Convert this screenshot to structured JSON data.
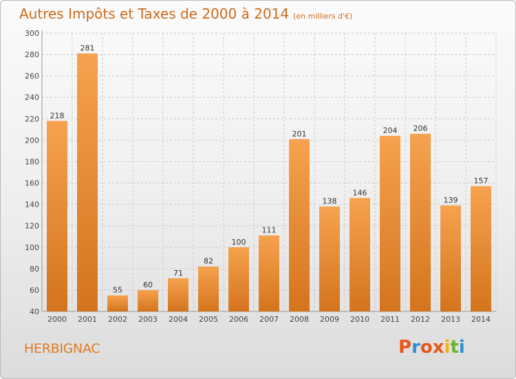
{
  "header": {
    "title": "Autres Impôts et Taxes de 2000 à 2014",
    "subtitle": "(en milliers d'€)"
  },
  "footer": {
    "commune": "HERBIGNAC",
    "logo_text": "Proxiti"
  },
  "colors": {
    "bar_top": "#f6a24e",
    "bar_bottom": "#d4741d",
    "title": "#d06a1a",
    "grid": "#c8c8c8",
    "logo": [
      "#e8571b",
      "#2f8fd6",
      "#e8571b",
      "#e8571b",
      "#f2b21a",
      "#68b52e",
      "#2f8fd6"
    ]
  },
  "chart_data": {
    "type": "bar",
    "title": "Autres Impôts et Taxes de 2000 à 2014",
    "subtitle": "(en milliers d'€)",
    "categories": [
      "2000",
      "2001",
      "2002",
      "2003",
      "2004",
      "2005",
      "2006",
      "2007",
      "2008",
      "2009",
      "2010",
      "2011",
      "2012",
      "2013",
      "2014"
    ],
    "values": [
      218,
      281,
      55,
      60,
      71,
      82,
      100,
      111,
      201,
      138,
      146,
      204,
      206,
      139,
      157
    ],
    "ylim": [
      40,
      300
    ],
    "yticks": [
      40,
      60,
      80,
      100,
      120,
      140,
      160,
      180,
      200,
      220,
      240,
      260,
      280,
      300
    ],
    "grid": true,
    "xlabel": "",
    "ylabel": ""
  }
}
